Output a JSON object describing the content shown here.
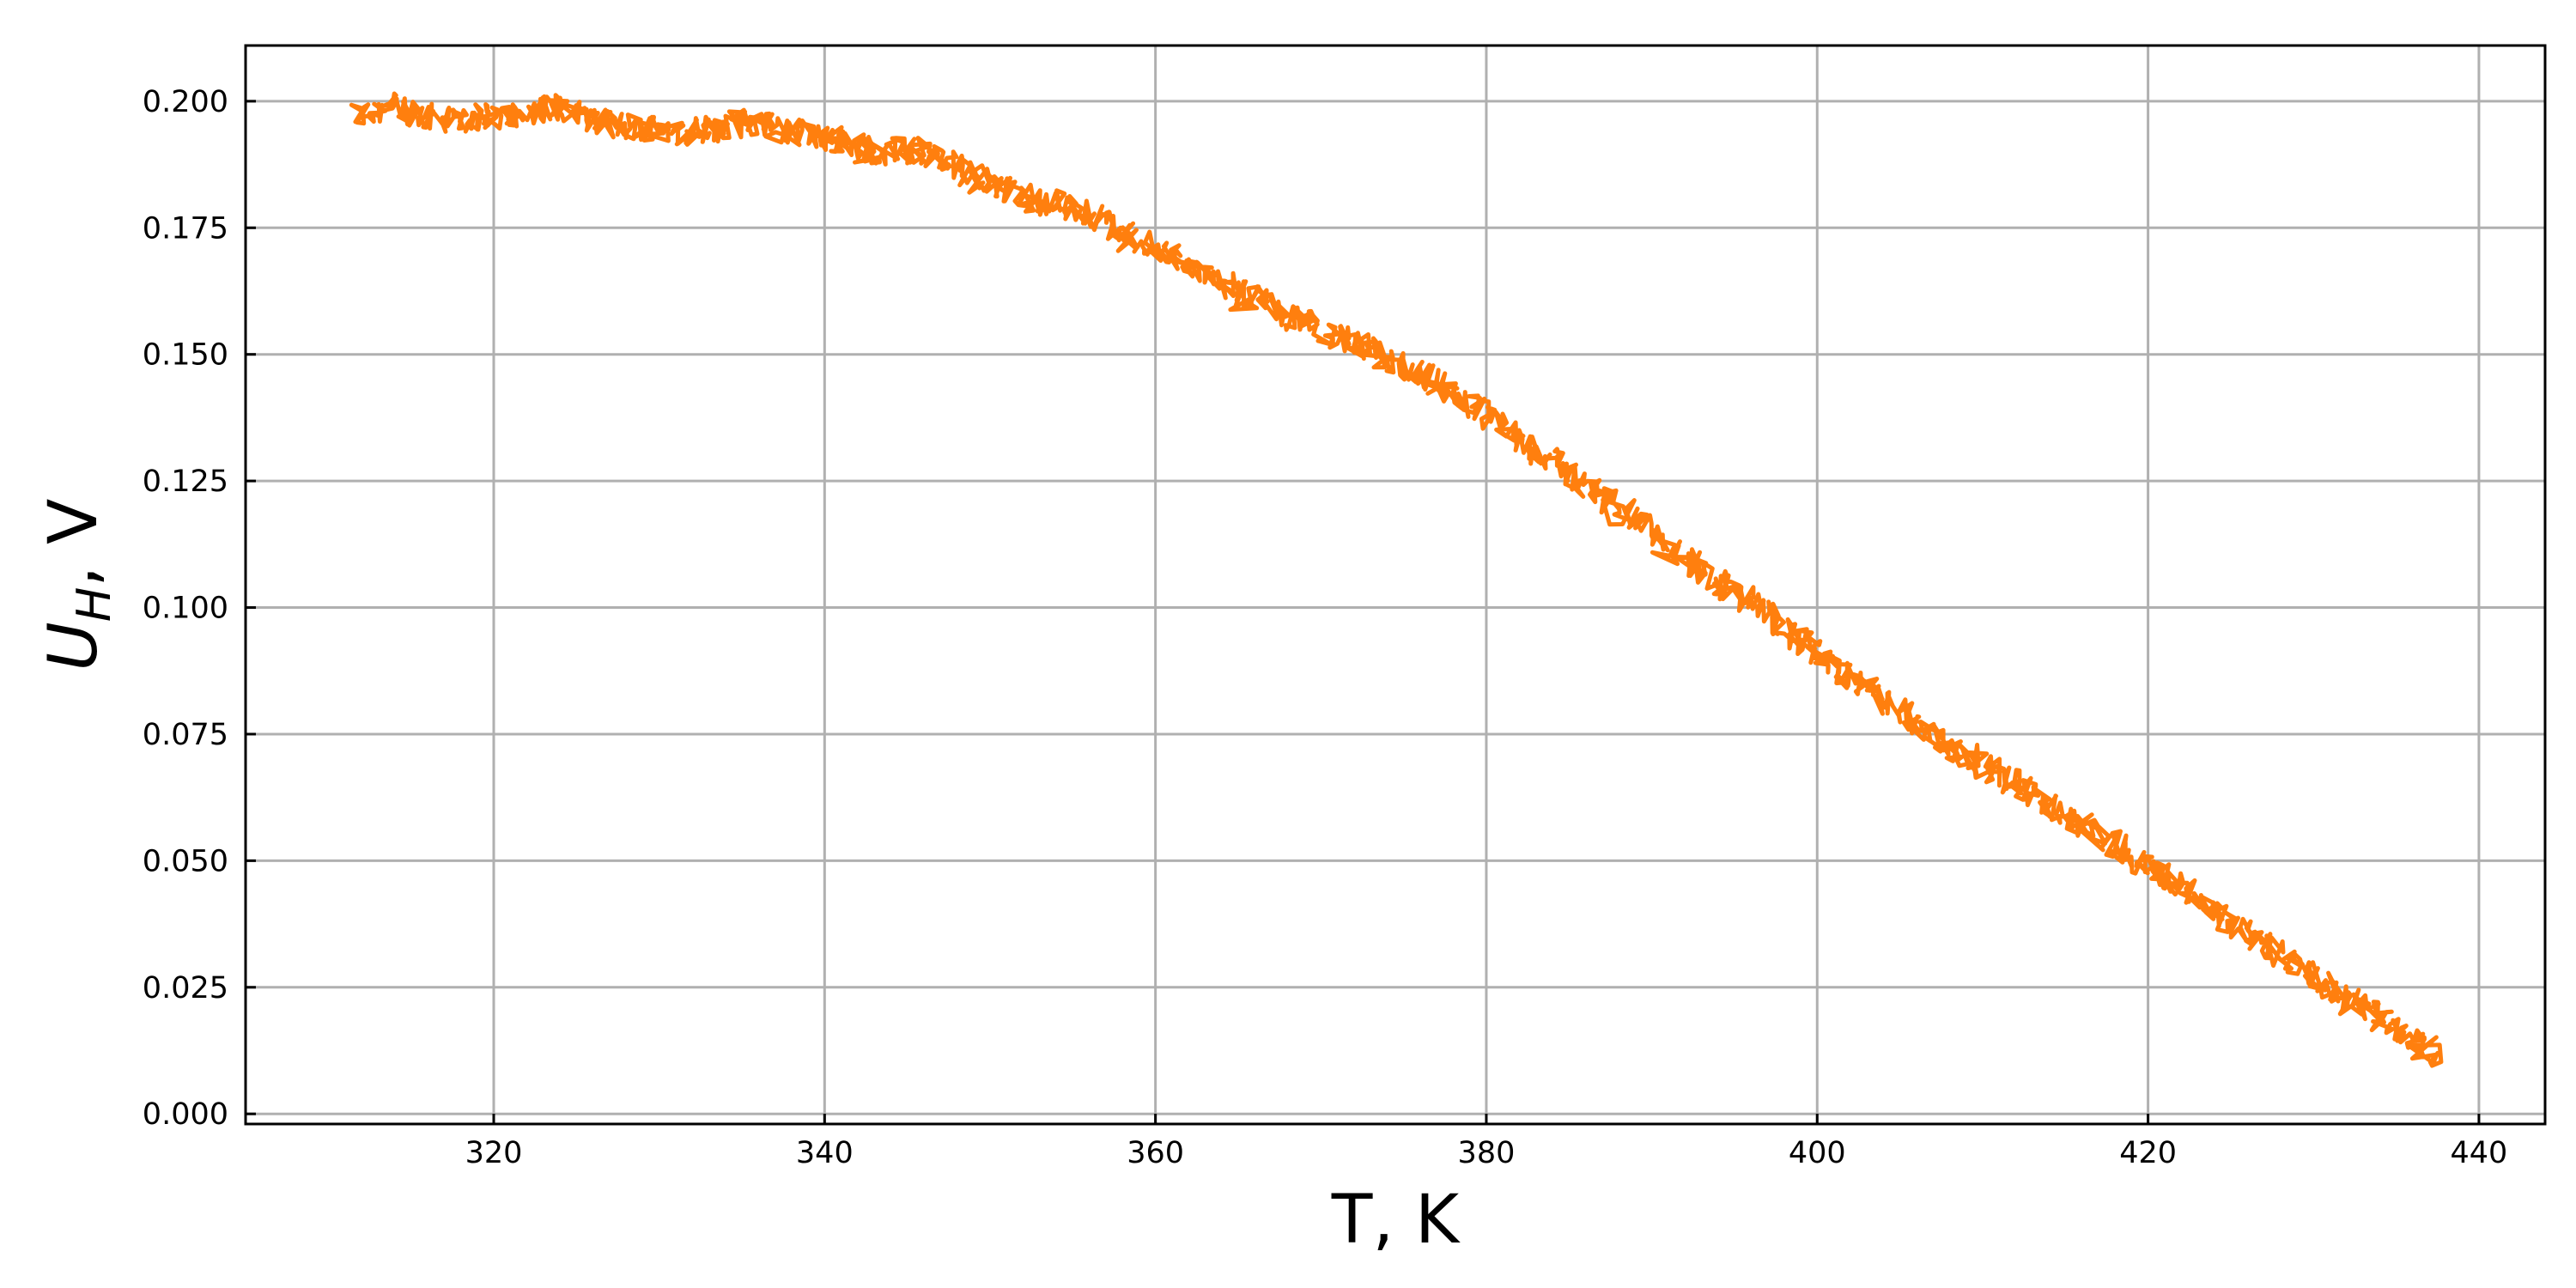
{
  "chart_data": {
    "type": "line",
    "xlabel": "T, K",
    "ylabel_main": "U",
    "ylabel_sub": "H",
    "ylabel_unit": ", V",
    "xlim": [
      305,
      444
    ],
    "ylim": [
      -0.002,
      0.211
    ],
    "x_ticks": [
      320,
      340,
      360,
      380,
      400,
      420,
      440
    ],
    "x_tick_labels": [
      "320",
      "340",
      "360",
      "380",
      "400",
      "420",
      "440"
    ],
    "y_ticks": [
      0.0,
      0.025,
      0.05,
      0.075,
      0.1,
      0.125,
      0.15,
      0.175,
      0.2
    ],
    "y_tick_labels": [
      "0.000",
      "0.025",
      "0.050",
      "0.075",
      "0.100",
      "0.125",
      "0.150",
      "0.175",
      "0.200"
    ],
    "grid": true,
    "series": [
      {
        "color": "#ff7f0e",
        "noisy": true,
        "x": [
          311.5,
          314,
          316,
          318,
          320,
          322,
          324,
          326,
          328,
          330,
          332,
          334,
          336,
          338,
          340,
          342,
          344,
          346,
          348,
          350,
          352,
          354,
          356,
          358,
          360,
          362,
          364,
          366,
          368,
          370,
          372,
          374,
          376,
          378,
          380,
          382,
          384,
          386,
          388,
          390,
          392,
          394,
          396,
          398,
          400,
          402,
          404,
          406,
          408,
          410,
          412,
          414,
          416,
          418,
          420,
          422,
          424,
          426,
          428,
          430,
          432,
          434,
          436,
          437.5
        ],
        "y": [
          0.197,
          0.199,
          0.197,
          0.196,
          0.197,
          0.198,
          0.199,
          0.196,
          0.195,
          0.195,
          0.194,
          0.195,
          0.196,
          0.194,
          0.193,
          0.191,
          0.19,
          0.19,
          0.187,
          0.184,
          0.181,
          0.18,
          0.178,
          0.174,
          0.171,
          0.168,
          0.164,
          0.161,
          0.158,
          0.155,
          0.152,
          0.149,
          0.146,
          0.142,
          0.138,
          0.133,
          0.129,
          0.124,
          0.12,
          0.115,
          0.11,
          0.105,
          0.101,
          0.096,
          0.091,
          0.086,
          0.082,
          0.077,
          0.073,
          0.069,
          0.065,
          0.061,
          0.057,
          0.053,
          0.049,
          0.045,
          0.04,
          0.036,
          0.032,
          0.027,
          0.023,
          0.019,
          0.015,
          0.012
        ]
      }
    ]
  }
}
